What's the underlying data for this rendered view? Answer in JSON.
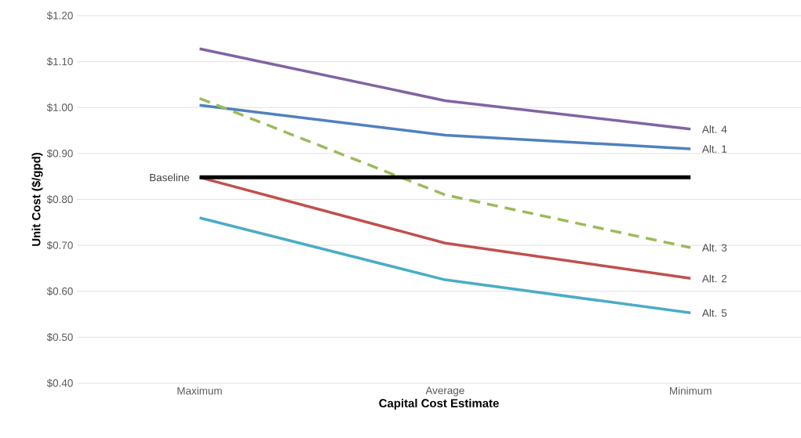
{
  "chart_data": {
    "type": "line",
    "xlabel": "Capital Cost Estimate",
    "ylabel": "Unit Cost ($/gpd)",
    "categories": [
      "Maximum",
      "Average",
      "Minimum"
    ],
    "ylim": [
      0.4,
      1.2
    ],
    "yticks": [
      {
        "value": 0.4,
        "label": "$0.40"
      },
      {
        "value": 0.5,
        "label": "$0.50"
      },
      {
        "value": 0.6,
        "label": "$0.60"
      },
      {
        "value": 0.7,
        "label": "$0.70"
      },
      {
        "value": 0.8,
        "label": "$0.80"
      },
      {
        "value": 0.9,
        "label": "$0.90"
      },
      {
        "value": 1.0,
        "label": "$1.00"
      },
      {
        "value": 1.1,
        "label": "$1.10"
      },
      {
        "value": 1.2,
        "label": "$1.20"
      }
    ],
    "grid": "y",
    "series": [
      {
        "name": "Alt. 4",
        "color": "#8064a2",
        "values": [
          1.128,
          1.015,
          0.953
        ]
      },
      {
        "name": "Alt. 1",
        "color": "#4f81bd",
        "values": [
          1.005,
          0.94,
          0.91
        ]
      },
      {
        "name": "Alt. 3",
        "color": "#9bbb59",
        "line_style": "dashed",
        "values": [
          1.02,
          0.81,
          0.695
        ]
      },
      {
        "name": "Alt. 2",
        "color": "#c0504d",
        "values": [
          0.848,
          0.705,
          0.628
        ]
      },
      {
        "name": "Alt. 5",
        "color": "#4bacc6",
        "values": [
          0.76,
          0.625,
          0.553
        ]
      },
      {
        "color": "#000000",
        "values": [
          0.848,
          0.848,
          0.848
        ]
      }
    ],
    "annotations": [
      {
        "text": "Baseline",
        "x": "Maximum",
        "y": 0.848
      }
    ]
  }
}
